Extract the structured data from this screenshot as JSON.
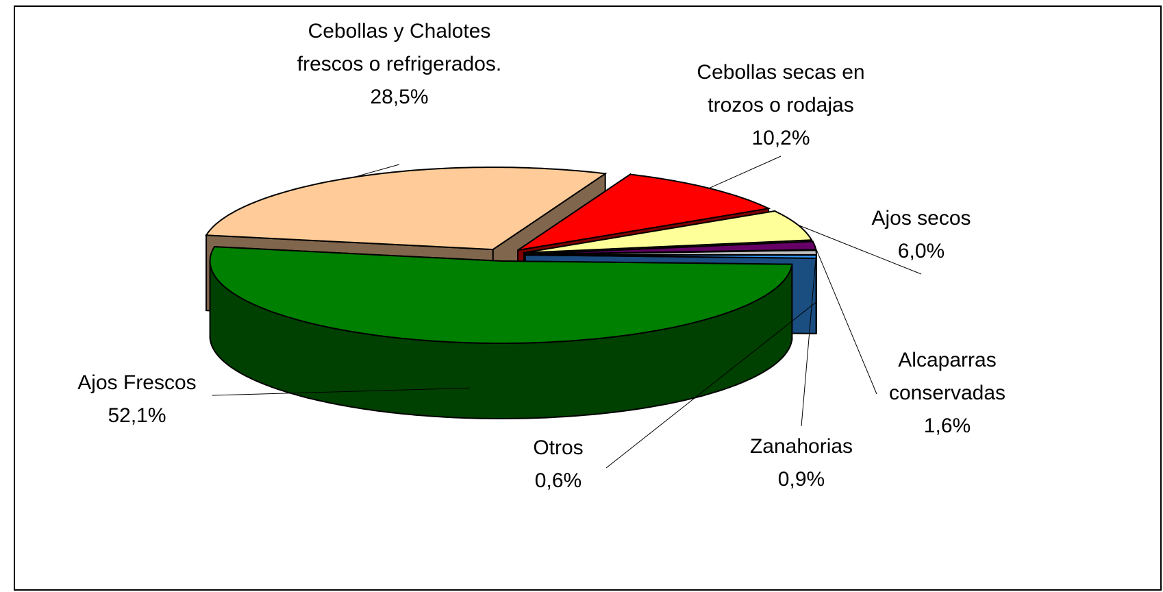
{
  "chart_data": {
    "type": "pie3d",
    "labels": [
      "Cebollas y Chalotes frescos o refrigerados.",
      "Cebollas secas en trozos o rodajas",
      "Ajos secos",
      "Alcaparras conservadas",
      "Zanahorias",
      "Otros",
      "Ajos Frescos"
    ],
    "values": [
      28.5,
      10.2,
      6.0,
      1.6,
      0.9,
      0.6,
      52.1
    ],
    "value_labels": [
      "28,5%",
      "10,2%",
      "6,0%",
      "1,6%",
      "0,9%",
      "0,6%",
      "52,1%"
    ],
    "colors": [
      "#ffcc99",
      "#ff0000",
      "#ffff99",
      "#660066",
      "#c0c0c0",
      "#3399ff",
      "#008000"
    ]
  }
}
